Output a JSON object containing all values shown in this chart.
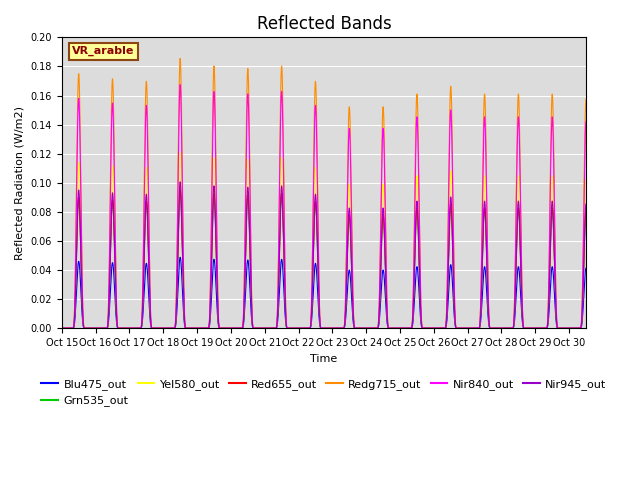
{
  "title": "Reflected Bands",
  "xlabel": "Time",
  "ylabel": "Reflected Radiation (W/m2)",
  "ylim": [
    0,
    0.2
  ],
  "yticks": [
    0.0,
    0.02,
    0.04,
    0.06,
    0.08,
    0.1,
    0.12,
    0.14,
    0.16,
    0.18,
    0.2
  ],
  "annotation_text": "VR_arable",
  "annotation_color": "#8B0000",
  "annotation_bg": "#FFFF99",
  "annotation_edge": "#8B4513",
  "n_days": 16,
  "start_day": 15,
  "series": [
    {
      "name": "Blu475_out",
      "color": "#0000FF",
      "peak_scale": 0.046
    },
    {
      "name": "Grn535_out",
      "color": "#00CC00",
      "peak_scale": 0.088
    },
    {
      "name": "Yel580_out",
      "color": "#FFFF00",
      "peak_scale": 0.114
    },
    {
      "name": "Red655_out",
      "color": "#FF0000",
      "peak_scale": 0.09
    },
    {
      "name": "Redg715_out",
      "color": "#FF8C00",
      "peak_scale": 0.175
    },
    {
      "name": "Nir840_out",
      "color": "#FF00FF",
      "peak_scale": 0.158
    },
    {
      "name": "Nir945_out",
      "color": "#9900CC",
      "peak_scale": 0.095
    }
  ],
  "peak_variation": [
    1.0,
    0.98,
    0.97,
    1.06,
    1.03,
    1.02,
    1.03,
    0.97,
    0.87,
    0.87,
    0.92,
    0.95,
    0.92,
    0.92,
    0.92,
    0.9
  ],
  "bg_color": "#DCDCDC",
  "grid_color": "#FFFFFF",
  "legend_fontsize": 8,
  "title_fontsize": 12,
  "figwidth": 6.4,
  "figheight": 4.8,
  "dpi": 100
}
